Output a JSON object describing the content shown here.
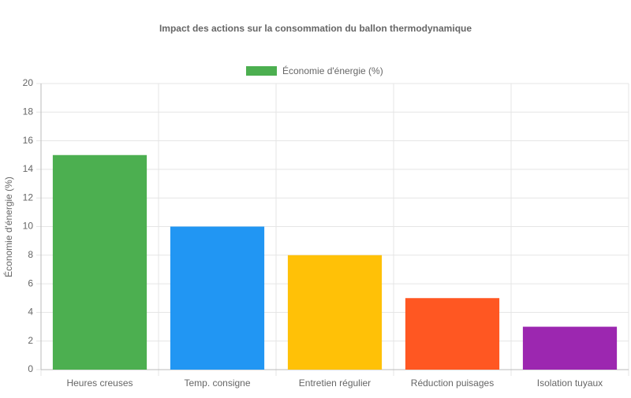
{
  "chart_data": {
    "type": "bar",
    "title": "Impact des actions sur la consommation du ballon thermodynamique",
    "y_label": "Économie d'énergie (%)",
    "categories": [
      "Heures creuses",
      "Temp. consigne",
      "Entretien régulier",
      "Réduction puisages",
      "Isolation tuyaux"
    ],
    "series": [
      {
        "name": "Économie d'énergie (%)",
        "color": "#4caf50",
        "bar_colors": [
          "#4caf50",
          "#2196f3",
          "#ffc107",
          "#ff5722",
          "#9c27b0"
        ],
        "values": [
          15,
          10,
          8,
          5,
          3
        ]
      }
    ],
    "ylim": [
      0,
      20
    ],
    "yticks": [
      0,
      2,
      4,
      6,
      8,
      10,
      12,
      14,
      16,
      18,
      20
    ],
    "grid": true,
    "legend": "top"
  }
}
